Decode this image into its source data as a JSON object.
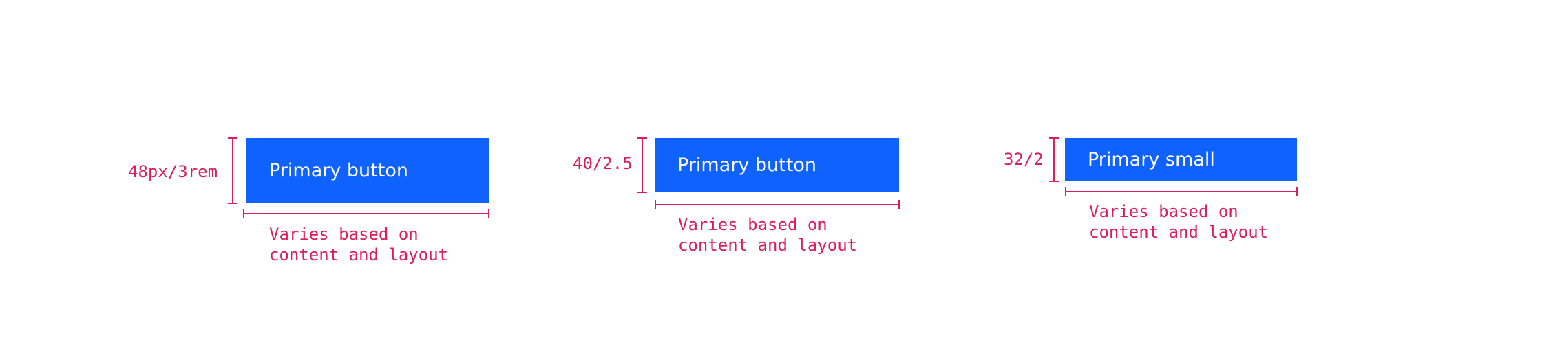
{
  "variants": [
    {
      "id": "large",
      "button_label": "Primary button",
      "height_label": "48px/3rem",
      "width_note": [
        "Varies based on",
        "content and layout"
      ]
    },
    {
      "id": "medium",
      "button_label": "Primary button",
      "height_label": "40/2.5",
      "width_note": [
        "Varies based on",
        "content and layout"
      ]
    },
    {
      "id": "small",
      "button_label": "Primary small",
      "height_label": "32/2",
      "width_note": [
        "Varies based on",
        "content and layout"
      ]
    }
  ],
  "colors": {
    "button_background": "#0f62fe",
    "button_text": "#ffffff",
    "annotation": "#da1e5b"
  }
}
